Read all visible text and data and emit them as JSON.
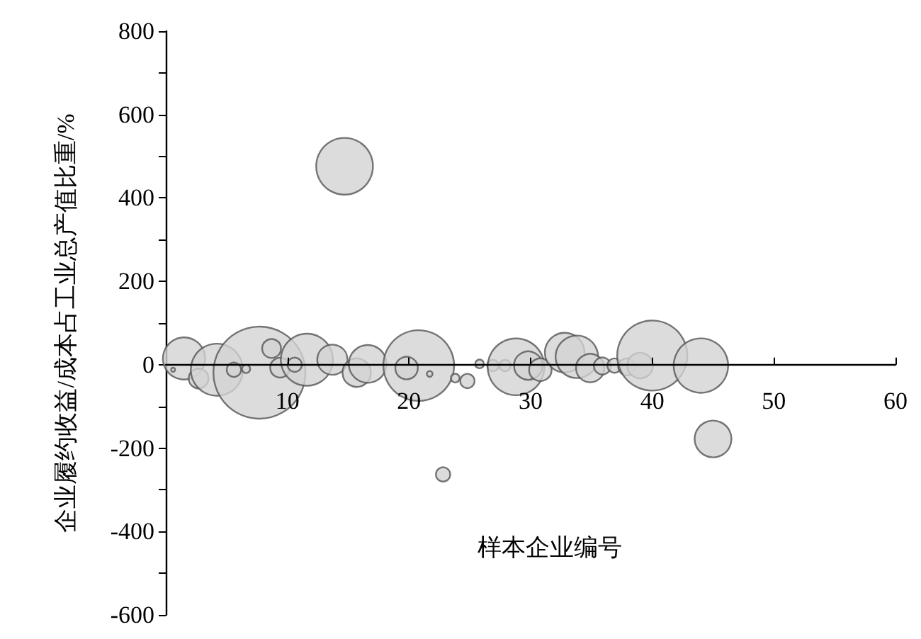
{
  "chart_data": {
    "type": "bubble",
    "annotations": [
      "样本企业编号"
    ],
    "ylabel": "企业履约收益/成本占工业总产值比重/%",
    "xlim": [
      0,
      60
    ],
    "xticks": [
      10,
      20,
      30,
      40,
      50,
      60
    ],
    "ylim": [
      -600,
      800
    ],
    "yticks": [
      -600,
      {
        "value": -500,
        "label": null
      },
      -400,
      {
        "value": -300,
        "label": null
      },
      -200,
      {
        "value": -100,
        "label": null
      },
      0,
      {
        "value": 100,
        "label": null
      },
      200,
      {
        "value": 300,
        "label": null
      },
      400,
      {
        "value": 500,
        "label": null
      },
      600,
      {
        "value": 700,
        "label": null
      },
      800
    ],
    "grid": false,
    "marker": "circle",
    "series": [
      {
        "color": "#d3d3d3",
        "x": [
          1.5,
          0.6,
          2.7,
          4.2,
          7.7,
          5.6,
          6.6,
          8.7,
          9.4,
          11.6,
          10.6,
          13.7,
          15.7,
          16.6,
          20.8,
          19.8,
          21.7,
          23.8,
          24.8,
          25.8,
          22.8,
          26.9,
          27.9,
          28.8,
          29.8,
          30.8,
          32.8,
          33.8,
          34.9,
          35.9,
          36.9,
          37.9,
          39.0,
          40.0,
          44.0,
          45.0,
          14.7
        ],
        "values": [
          15,
          -12,
          -33,
          -12,
          -19,
          -12,
          -10,
          39,
          -7,
          12,
          0,
          12,
          -19,
          2,
          -2,
          -8,
          -22,
          -32,
          -39,
          2,
          -263,
          -2,
          -2,
          -5,
          -2,
          -12,
          29,
          19,
          -8,
          -3,
          -2,
          -5,
          -2,
          22,
          -2,
          -178,
          476
        ],
        "sizes": [
          0.21,
          0.002,
          0.046,
          0.32,
          1,
          0.024,
          0.008,
          0.042,
          0.046,
          0.32,
          0.024,
          0.108,
          0.095,
          0.168,
          0.59,
          0.06,
          0.004,
          0.009,
          0.024,
          0.009,
          0.024,
          0.015,
          0.015,
          0.38,
          0.095,
          0.06,
          0.186,
          0.213,
          0.095,
          0.034,
          0.024,
          0.034,
          0.077,
          0.58,
          0.35,
          0.16,
          0.38
        ]
      }
    ]
  }
}
